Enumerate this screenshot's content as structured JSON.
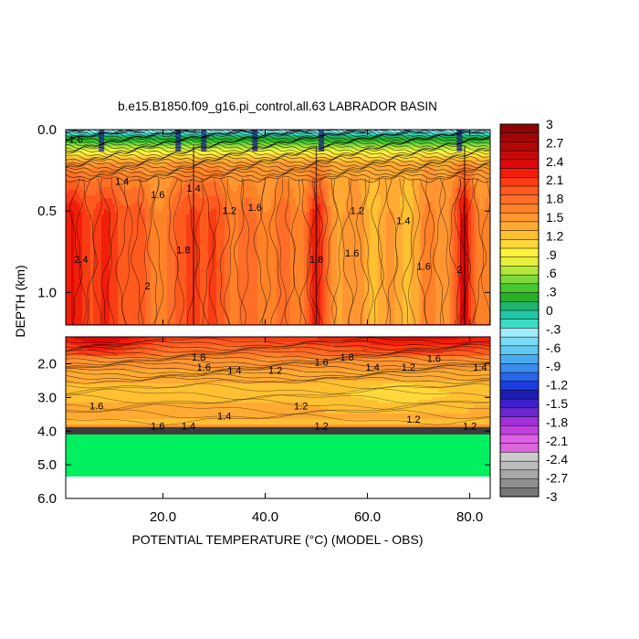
{
  "chart_data": {
    "type": "heatmap",
    "title": "b.e15.B1850.f09_g16.pi_control.all.63 LABRADOR BASIN",
    "xlabel": "POTENTIAL TEMPERATURE (°C) (MODEL - OBS)",
    "ylabel": "DEPTH (km)",
    "xlim": [
      1,
      84
    ],
    "x_ticks": [
      "20.0",
      "40.0",
      "60.0",
      "80.0"
    ],
    "x_tick_values": [
      20,
      40,
      60,
      80
    ],
    "upper_panel": {
      "ylim": [
        0,
        1.2
      ],
      "y_ticks": [
        "0.0",
        "0.5",
        "1.0"
      ],
      "y_tick_values": [
        0,
        0.5,
        1.0
      ]
    },
    "lower_panel": {
      "ylim": [
        1.2,
        6.0
      ],
      "y_ticks": [
        "2.0",
        "3.0",
        "4.0",
        "5.0",
        "6.0"
      ],
      "y_tick_values": [
        2,
        3,
        4,
        5,
        6
      ],
      "data_bottom_depth": 5.4
    },
    "colorbar": {
      "min": -3,
      "max": 3,
      "labels": [
        "3",
        "2.7",
        "2.4",
        "2.1",
        "1.8",
        "1.5",
        "1.2",
        ".9",
        ".6",
        ".3",
        "0",
        "-.3",
        "-.6",
        "-.9",
        "-1.2",
        "-1.5",
        "-1.8",
        "-2.1",
        "-2.4",
        "-2.7",
        "-3"
      ],
      "label_values": [
        3,
        2.7,
        2.4,
        2.1,
        1.8,
        1.5,
        1.2,
        0.9,
        0.6,
        0.3,
        0,
        -0.3,
        -0.6,
        -0.9,
        -1.2,
        -1.5,
        -1.8,
        -2.1,
        -2.4,
        -2.7,
        -3
      ]
    },
    "contour_labels": [
      {
        "text": "1.6",
        "x": 3,
        "y": 0.08
      },
      {
        "text": "1.4",
        "x": 12,
        "y": 0.34
      },
      {
        "text": "1.6",
        "x": 19,
        "y": 0.42
      },
      {
        "text": "2.4",
        "x": 4,
        "y": 0.82
      },
      {
        "text": "2",
        "x": 17,
        "y": 0.98
      },
      {
        "text": "1.8",
        "x": 24,
        "y": 0.76
      },
      {
        "text": "1.4",
        "x": 26,
        "y": 0.38
      },
      {
        "text": "1.2",
        "x": 33,
        "y": 0.52
      },
      {
        "text": "1.6",
        "x": 38,
        "y": 0.5
      },
      {
        "text": "1.8",
        "x": 50,
        "y": 0.82
      },
      {
        "text": "1.6",
        "x": 57,
        "y": 0.78
      },
      {
        "text": "1.2",
        "x": 58,
        "y": 0.52
      },
      {
        "text": "1.4",
        "x": 67,
        "y": 0.58
      },
      {
        "text": "1.6",
        "x": 71,
        "y": 0.86
      },
      {
        "text": "2",
        "x": 78,
        "y": 0.88
      },
      {
        "text": "1.8",
        "x": 27,
        "y": 1.9
      },
      {
        "text": "1.6",
        "x": 28,
        "y": 2.2
      },
      {
        "text": "1.4",
        "x": 34,
        "y": 2.3
      },
      {
        "text": "1.2",
        "x": 42,
        "y": 2.3
      },
      {
        "text": "1.6",
        "x": 51,
        "y": 2.05
      },
      {
        "text": "1.8",
        "x": 56,
        "y": 1.9
      },
      {
        "text": "1.4",
        "x": 61,
        "y": 2.2
      },
      {
        "text": "1.2",
        "x": 68,
        "y": 2.2
      },
      {
        "text": "1.6",
        "x": 73,
        "y": 1.95
      },
      {
        "text": "1.4",
        "x": 82,
        "y": 2.2
      },
      {
        "text": "1.6",
        "x": 7,
        "y": 3.35
      },
      {
        "text": "1.2",
        "x": 47,
        "y": 3.35
      },
      {
        "text": "1.4",
        "x": 32,
        "y": 3.65
      },
      {
        "text": "1.2",
        "x": 69,
        "y": 3.75
      },
      {
        "text": "1.6",
        "x": 19,
        "y": 3.95
      },
      {
        "text": "1.4",
        "x": 25,
        "y": 3.95
      },
      {
        "text": "1.2",
        "x": 51,
        "y": 3.95
      },
      {
        "text": "1.2",
        "x": 80,
        "y": 3.95
      }
    ]
  },
  "colors": {
    "ramp": [
      "#777777",
      "#8f8f8f",
      "#a8a8a8",
      "#bcbcbc",
      "#cccccc",
      "#dd66dd",
      "#e060e6",
      "#c040e0",
      "#a030d8",
      "#6a28d2",
      "#4020cc",
      "#1c1cb4",
      "#1c3cdc",
      "#2a64e8",
      "#3c8ceb",
      "#4aaaf0",
      "#60c8f0",
      "#7cdcf5",
      "#a0ecfa",
      "#3cdcc4",
      "#20c8a8",
      "#20b46c",
      "#28b028",
      "#48c830",
      "#7ed83c",
      "#b4e63c",
      "#e8f23c",
      "#fff23c",
      "#ffd83c",
      "#ffc032",
      "#ffaa32",
      "#ff9632",
      "#ff8228",
      "#ff6e28",
      "#ff5a1e",
      "#fa3c14",
      "#f01e0a",
      "#dc0a0a",
      "#c80a0a",
      "#b40808",
      "#a00606",
      "#8c0404"
    ],
    "land": "#00f060"
  }
}
